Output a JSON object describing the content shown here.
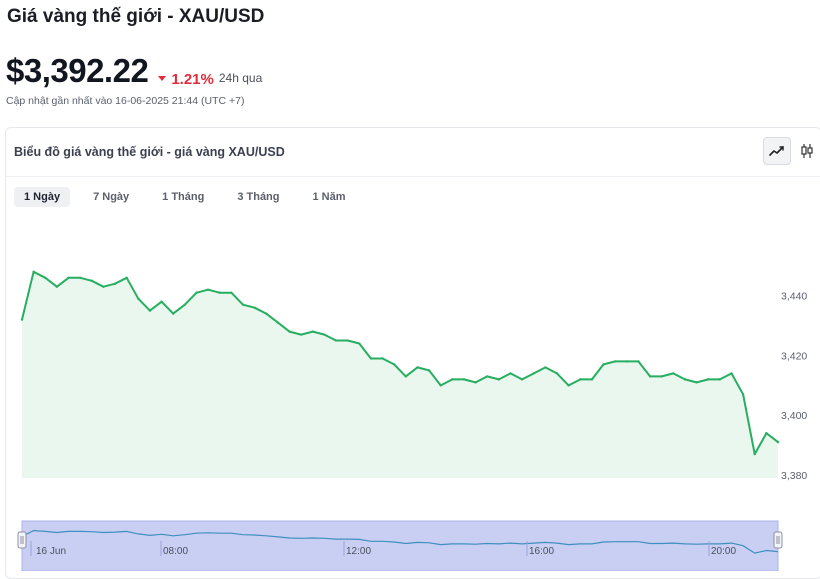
{
  "page": {
    "title": "Giá vàng thế giới - XAU/USD",
    "price": "$3,392.22",
    "change": "1.21%",
    "period": "24h qua",
    "updated": "Cập nhật gần nhất vào 16-06-2025 21:44 (UTC +7)"
  },
  "chart_card": {
    "title": "Biểu đồ giá vàng thế giới - giá vàng XAU/USD",
    "chart_type_buttons": [
      "line-chart-icon",
      "candlestick-icon"
    ],
    "ranges": [
      {
        "label": "1 Ngày",
        "active": true
      },
      {
        "label": "7 Ngày",
        "active": false
      },
      {
        "label": "1 Tháng",
        "active": false
      },
      {
        "label": "3 Tháng",
        "active": false
      },
      {
        "label": "1 Năm",
        "active": false
      }
    ]
  },
  "colors": {
    "line": "#27ae60",
    "area": "#e9f7ee",
    "negative": "#e02d3c",
    "navigator_fill": "#c9cff3",
    "navigator_line": "#3f8fbf"
  },
  "chart_data": {
    "type": "area",
    "title": "Biểu đồ giá vàng thế giới - giá vàng XAU/USD",
    "ylim": [
      3379,
      3466
    ],
    "yticks": [
      "3,380",
      "3,400",
      "3,420",
      "3,440"
    ],
    "ytick_values": [
      3380,
      3400,
      3420,
      3440
    ],
    "series": [
      {
        "values": [
          3432,
          3448,
          3446,
          3443,
          3446,
          3446,
          3445,
          3443,
          3444,
          3446,
          3439,
          3435,
          3438,
          3434,
          3437,
          3441,
          3442,
          3441,
          3441,
          3437,
          3436,
          3434,
          3431,
          3428,
          3427,
          3428,
          3427,
          3425,
          3425,
          3424,
          3419,
          3419,
          3417,
          3413,
          3416,
          3415,
          3410,
          3412,
          3412,
          3411,
          3413,
          3412,
          3414,
          3412,
          3414,
          3416,
          3414,
          3410,
          3412,
          3412,
          3417,
          3418,
          3418,
          3418,
          3413,
          3413,
          3414,
          3412,
          3411,
          3412,
          3412,
          3414,
          3407,
          3387,
          3394,
          3391
        ]
      }
    ],
    "navigator_labels": [
      "16 Jun",
      "08:00",
      "12:00",
      "16:00",
      "20:00"
    ],
    "grid": false
  }
}
